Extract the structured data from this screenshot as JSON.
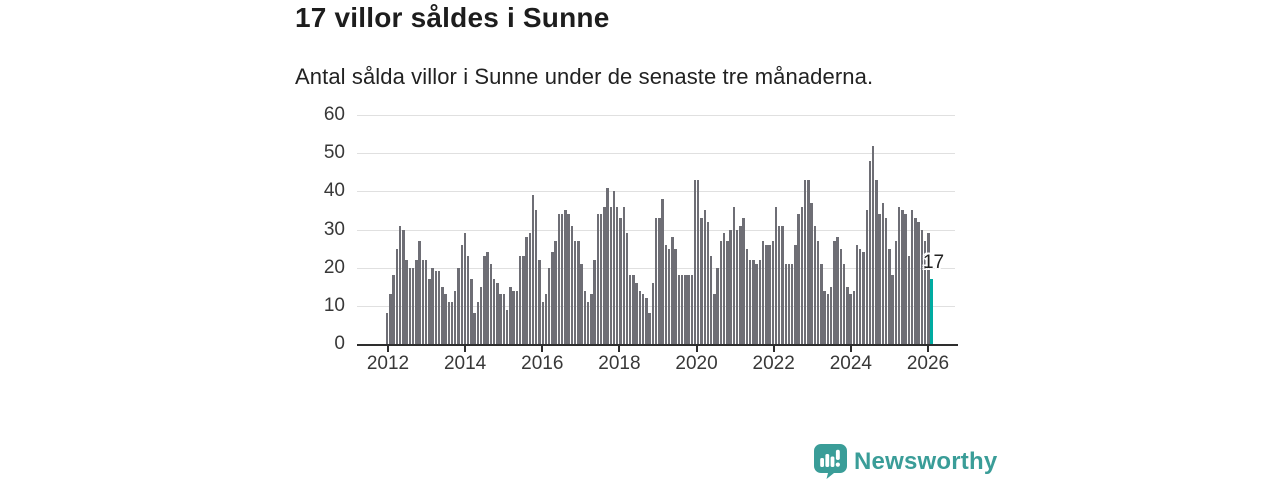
{
  "header": {
    "title": "17 villor såldes i Sunne",
    "subtitle": "Antal sålda villor i Sunne under de senaste tre månaderna."
  },
  "chart_data": {
    "type": "bar",
    "title": "17 villor såldes i Sunne",
    "subtitle": "Antal sålda villor i Sunne under de senaste tre månaderna.",
    "x_start": "2012-01",
    "x_end": "2026-01",
    "x_tick_labels": [
      "2012",
      "2014",
      "2016",
      "2018",
      "2020",
      "2022",
      "2024",
      "2026"
    ],
    "y_ticks": [
      0,
      10,
      20,
      30,
      40,
      50,
      60
    ],
    "ylim": [
      0,
      60
    ],
    "grid": "horizontal",
    "legend": "none",
    "values": [
      8,
      13,
      18,
      25,
      31,
      30,
      22,
      20,
      20,
      22,
      27,
      22,
      22,
      17,
      20,
      19,
      19,
      15,
      13,
      11,
      11,
      14,
      20,
      26,
      29,
      23,
      17,
      8,
      11,
      15,
      23,
      24,
      21,
      17,
      16,
      13,
      13,
      9,
      15,
      14,
      14,
      23,
      23,
      28,
      29,
      39,
      35,
      22,
      11,
      13,
      20,
      24,
      27,
      34,
      34,
      35,
      34,
      31,
      27,
      27,
      21,
      14,
      11,
      13,
      22,
      34,
      34,
      36,
      41,
      36,
      40,
      36,
      33,
      36,
      29,
      18,
      18,
      16,
      14,
      13,
      12,
      8,
      16,
      33,
      33,
      38,
      26,
      25,
      28,
      25,
      18,
      18,
      18,
      18,
      18,
      43,
      43,
      33,
      35,
      32,
      23,
      13,
      20,
      27,
      29,
      27,
      30,
      36,
      30,
      31,
      33,
      25,
      22,
      22,
      21,
      22,
      27,
      26,
      26,
      27,
      36,
      31,
      31,
      21,
      21,
      21,
      26,
      34,
      36,
      43,
      43,
      37,
      31,
      27,
      21,
      14,
      13,
      15,
      27,
      28,
      25,
      21,
      15,
      13,
      14,
      26,
      25,
      24,
      35,
      48,
      52,
      43,
      34,
      37,
      33,
      25,
      18,
      27,
      36,
      35,
      34,
      23,
      35,
      33,
      32,
      30,
      27,
      29,
      17
    ],
    "highlight": {
      "index": 168,
      "value": 17,
      "label": "17"
    },
    "bar_color": "#6e6e75",
    "highlight_color": "#00aba1"
  },
  "branding": {
    "name": "Newsworthy",
    "color": "#3a9d98",
    "icon": "newsworthy-speech-bubble-chart-icon"
  },
  "colors": {
    "background": "#ffffff",
    "title_text": "#1d1d1d",
    "axis_text": "#383838",
    "gridline": "#e0e0e0",
    "axis_line": "#2e2e2e"
  }
}
